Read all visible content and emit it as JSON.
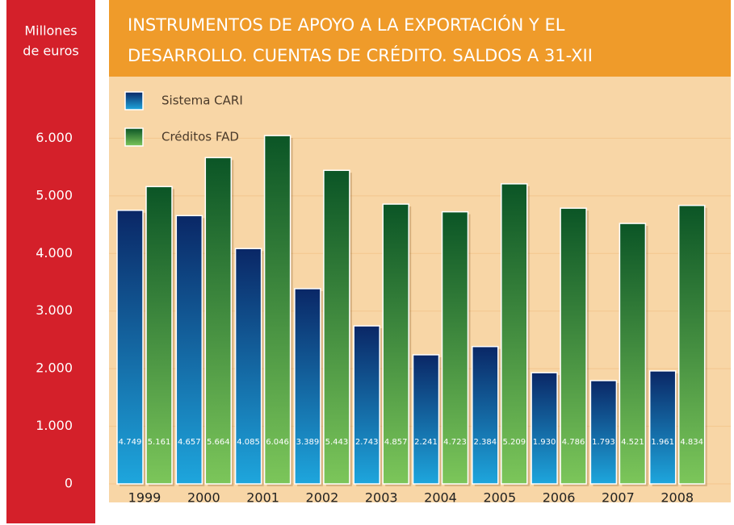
{
  "chart_data": {
    "type": "bar",
    "title": [
      "INSTRUMENTOS DE APOYO A LA EXPORTACIÓN Y EL",
      "DESARROLLO. CUENTAS DE CRÉDITO. SALDOS A 31-XII"
    ],
    "y_label": [
      "Millones",
      "de euros"
    ],
    "categories": [
      "1999",
      "2000",
      "2001",
      "2002",
      "2003",
      "2004",
      "2005",
      "2006",
      "2007",
      "2008"
    ],
    "series": [
      {
        "name": "Sistema CARI",
        "color": [
          "#0a2766",
          "#1ea6dd"
        ],
        "values": [
          4749,
          4657,
          4085,
          3389,
          2743,
          2241,
          2384,
          1930,
          1793,
          1961
        ],
        "value_labels": [
          "4.749",
          "4.657",
          "4.085",
          "3.389",
          "2.743",
          "2.241",
          "2.384",
          "1.930",
          "1.793",
          "1.961"
        ]
      },
      {
        "name": "Créditos FAD",
        "color": [
          "#0b5526",
          "#7cc65a"
        ],
        "values": [
          5161,
          5664,
          6046,
          5443,
          4857,
          4723,
          5209,
          4786,
          4521,
          4834
        ],
        "value_labels": [
          "5.161",
          "5.664",
          "6.046",
          "5.443",
          "4.857",
          "4.723",
          "5.209",
          "4.786",
          "4.521",
          "4.834"
        ]
      }
    ],
    "ylim": [
      0,
      7000
    ],
    "yticks": [
      0,
      {
        "value": 1000,
        "label": "1.000"
      },
      {
        "value": 2000,
        "label": "2.000"
      },
      {
        "value": 3000,
        "label": "3.000"
      },
      {
        "value": 4000,
        "label": "4.000"
      },
      {
        "value": 5000,
        "label": "5.000"
      },
      {
        "value": 6000,
        "label": "6.000"
      }
    ],
    "grid": true
  }
}
